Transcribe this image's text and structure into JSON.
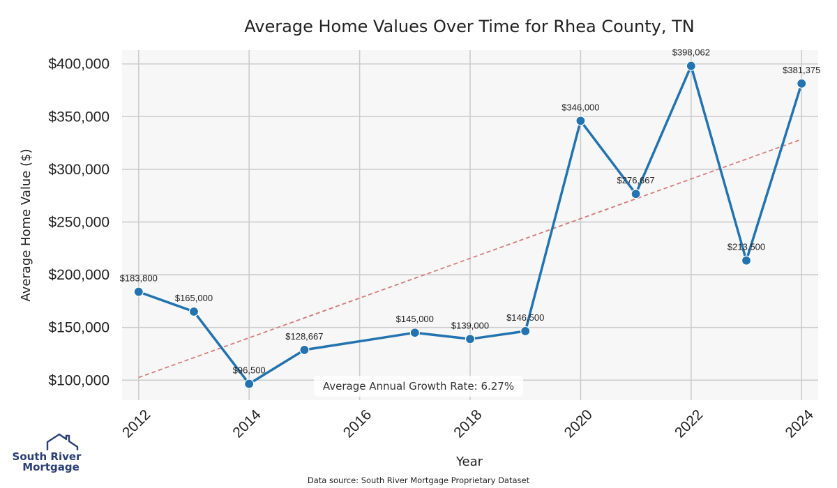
{
  "chart_data": {
    "type": "line",
    "title": "Average Home Values Over Time for Rhea County, TN",
    "xlabel": "Year",
    "ylabel": "Average Home Value ($)",
    "x": [
      2012,
      2013,
      2014,
      2015,
      2017,
      2018,
      2019,
      2020,
      2021,
      2022,
      2023,
      2024
    ],
    "values": [
      183800,
      165000,
      96500,
      128667,
      145000,
      139000,
      146500,
      346000,
      276667,
      398062,
      213500,
      381375
    ],
    "data_labels": [
      "$183,800",
      "$165,000",
      "$96,500",
      "$128,667",
      "$145,000",
      "$139,000",
      "$146,500",
      "$346,000",
      "$276,667",
      "$398,062",
      "$213,500",
      "$381,375"
    ],
    "xticks": [
      "2012",
      "2014",
      "2016",
      "2018",
      "2020",
      "2022",
      "2024"
    ],
    "xtick_values": [
      2012,
      2014,
      2016,
      2018,
      2020,
      2022,
      2024
    ],
    "yticks": [
      "$100,000",
      "$150,000",
      "$200,000",
      "$250,000",
      "$300,000",
      "$350,000",
      "$400,000"
    ],
    "ytick_values": [
      100000,
      150000,
      200000,
      250000,
      300000,
      350000,
      400000
    ],
    "xlim": [
      2011.7,
      2024.3
    ],
    "ylim": [
      81000,
      413000
    ],
    "trendline": {
      "x": [
        2012,
        2024
      ],
      "y": [
        102500,
        328500
      ],
      "style": "dashed"
    },
    "grid": true,
    "growth_annotation": "Average Annual Growth Rate: 6.27%",
    "colors": {
      "line": "#2273b0",
      "trend": "#d47a78",
      "plot_bg": "#f7f7f7",
      "grid": "#cccccc"
    }
  },
  "footer": {
    "source": "Data source: South River Mortgage Proprietary Dataset",
    "logo_line1": "South River",
    "logo_line2": "Mortgage"
  }
}
